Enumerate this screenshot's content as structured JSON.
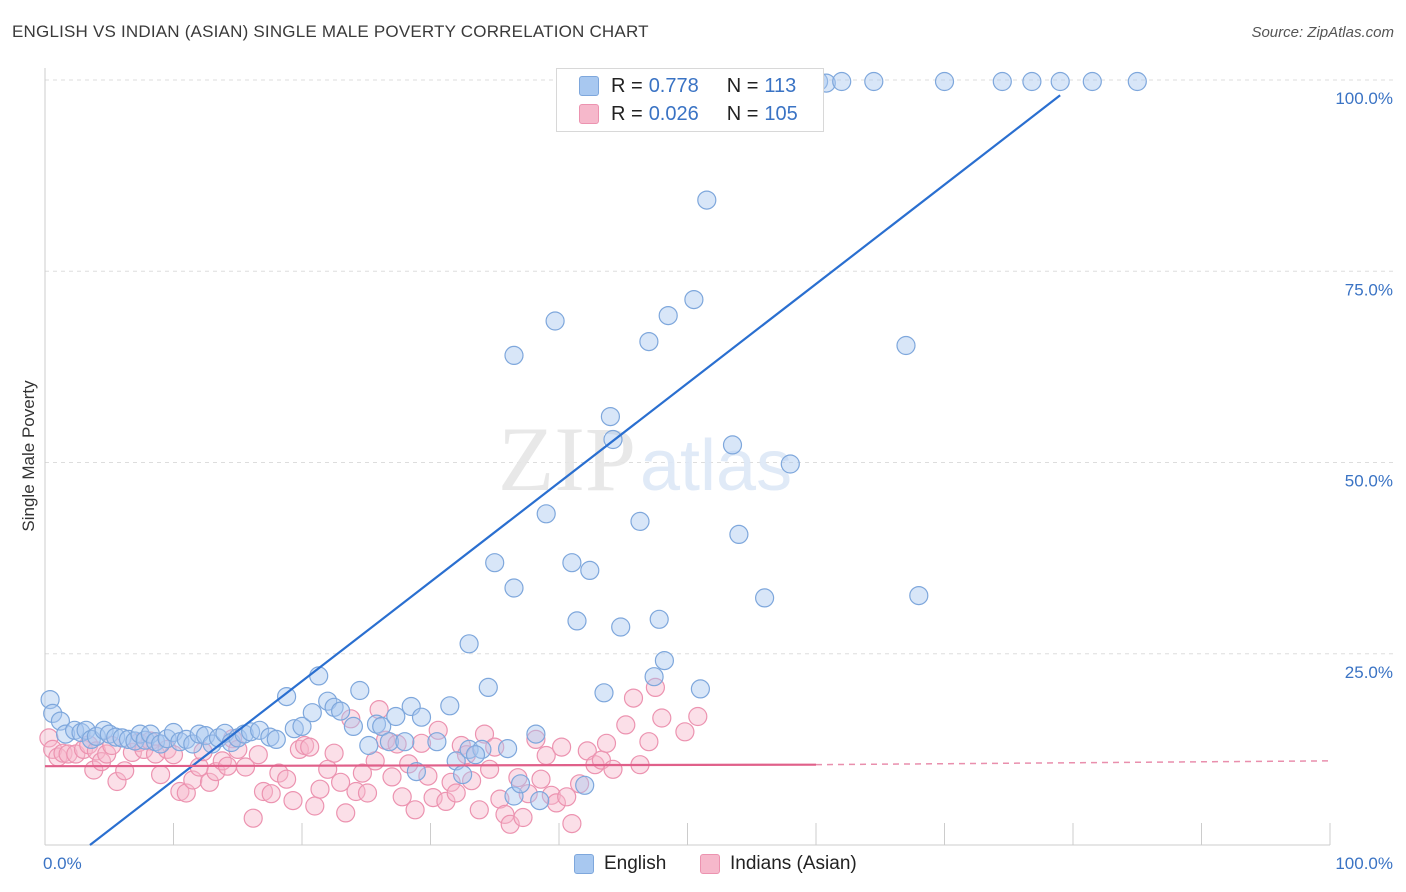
{
  "header": {
    "title": "ENGLISH VS INDIAN (ASIAN) SINGLE MALE POVERTY CORRELATION CHART",
    "source": "Source: ZipAtlas.com"
  },
  "watermark": {
    "zip": "ZIP",
    "atlas": "atlas"
  },
  "legend": {
    "r_label": "R =",
    "n_label": "N =",
    "series": [
      {
        "name": "English",
        "r": "0.778",
        "n": "113"
      },
      {
        "name": "Indians (Asian)",
        "r": "0.026",
        "n": "105"
      }
    ]
  },
  "colors": {
    "english_fill": "#a8c8f0",
    "english_stroke": "#7ea7dc",
    "english_line": "#2a6fd0",
    "indian_fill": "#f6b8cb",
    "indian_stroke": "#ec93b0",
    "indian_line": "#e0608a",
    "tick_text": "#3a73c4",
    "grid": "#dddddd"
  },
  "chart_data": {
    "type": "scatter",
    "title": "ENGLISH VS INDIAN (ASIAN) SINGLE MALE POVERTY CORRELATION CHART",
    "xlabel": "",
    "ylabel": "Single Male Poverty",
    "xlim": [
      0,
      100
    ],
    "ylim": [
      0,
      100
    ],
    "x_tick_labels": [
      "0.0%",
      "100.0%"
    ],
    "y_tick_labels": [
      {
        "value": 25,
        "label": "25.0%"
      },
      {
        "value": 50,
        "label": "50.0%"
      },
      {
        "value": 75,
        "label": "75.0%"
      },
      {
        "value": 100,
        "label": "100.0%"
      }
    ],
    "grid": true,
    "legend_position": "top-center",
    "series": [
      {
        "name": "English",
        "r": 0.778,
        "n": 113,
        "trend": {
          "x": [
            3.5,
            79
          ],
          "y": [
            0,
            98
          ]
        },
        "points": [
          [
            0.4,
            19
          ],
          [
            0.6,
            17.2
          ],
          [
            1.2,
            16.2
          ],
          [
            1.6,
            14.5
          ],
          [
            2.3,
            15
          ],
          [
            2.8,
            14.7
          ],
          [
            3.2,
            15
          ],
          [
            3.6,
            13.8
          ],
          [
            4.0,
            14.2
          ],
          [
            4.6,
            15
          ],
          [
            5.0,
            14.5
          ],
          [
            5.5,
            14.1
          ],
          [
            6.0,
            14
          ],
          [
            6.5,
            13.8
          ],
          [
            7.0,
            13.6
          ],
          [
            7.4,
            14.5
          ],
          [
            7.8,
            13.7
          ],
          [
            8.2,
            14.5
          ],
          [
            8.6,
            13.5
          ],
          [
            9.0,
            13.2
          ],
          [
            9.5,
            13.9
          ],
          [
            10.0,
            14.7
          ],
          [
            10.5,
            13.5
          ],
          [
            11.0,
            13.8
          ],
          [
            11.5,
            13.2
          ],
          [
            12.0,
            14.5
          ],
          [
            12.5,
            14.3
          ],
          [
            13.0,
            13.2
          ],
          [
            13.5,
            14
          ],
          [
            14.0,
            14.6
          ],
          [
            14.5,
            13.4
          ],
          [
            15.0,
            14
          ],
          [
            15.5,
            14.5
          ],
          [
            16.0,
            14.8
          ],
          [
            16.7,
            15
          ],
          [
            17.5,
            14.1
          ],
          [
            18.0,
            13.8
          ],
          [
            18.8,
            19.4
          ],
          [
            19.4,
            15.2
          ],
          [
            20.0,
            15.5
          ],
          [
            20.8,
            17.3
          ],
          [
            21.3,
            22.1
          ],
          [
            22.0,
            18.8
          ],
          [
            22.5,
            18
          ],
          [
            23.0,
            17.5
          ],
          [
            24.0,
            15.5
          ],
          [
            24.5,
            20.2
          ],
          [
            25.2,
            13
          ],
          [
            25.8,
            15.8
          ],
          [
            26.2,
            15.5
          ],
          [
            26.8,
            13.5
          ],
          [
            27.3,
            16.8
          ],
          [
            28.0,
            13.5
          ],
          [
            28.5,
            18.1
          ],
          [
            28.9,
            9.6
          ],
          [
            29.3,
            16.7
          ],
          [
            30.5,
            13.5
          ],
          [
            31.5,
            18.2
          ],
          [
            32.0,
            11
          ],
          [
            32.5,
            9.2
          ],
          [
            33.0,
            12.5
          ],
          [
            34.0,
            12.5
          ],
          [
            33.5,
            11.8
          ],
          [
            33.0,
            26.3
          ],
          [
            34.5,
            20.6
          ],
          [
            35.0,
            36.9
          ],
          [
            36.5,
            33.6
          ],
          [
            36.5,
            6.4
          ],
          [
            37.0,
            8
          ],
          [
            38.2,
            14.5
          ],
          [
            36.0,
            12.6
          ],
          [
            36.5,
            64
          ],
          [
            38.5,
            5.8
          ],
          [
            39.0,
            43.3
          ],
          [
            39.7,
            68.5
          ],
          [
            41.0,
            36.9
          ],
          [
            41.4,
            29.3
          ],
          [
            42.0,
            7.8
          ],
          [
            42.4,
            35.9
          ],
          [
            43.5,
            19.9
          ],
          [
            44.0,
            56
          ],
          [
            44.2,
            53
          ],
          [
            44.8,
            28.5
          ],
          [
            46.3,
            42.3
          ],
          [
            47.0,
            65.8
          ],
          [
            47.4,
            22
          ],
          [
            47.8,
            29.5
          ],
          [
            48.2,
            24.1
          ],
          [
            48.5,
            69.2
          ],
          [
            50.5,
            71.3
          ],
          [
            51.0,
            20.4
          ],
          [
            51.5,
            84.3
          ],
          [
            52.0,
            99.2
          ],
          [
            53.5,
            52.3
          ],
          [
            54.0,
            40.6
          ],
          [
            56.0,
            32.3
          ],
          [
            58.0,
            49.8
          ],
          [
            60.2,
            99.8
          ],
          [
            60.8,
            99.6
          ],
          [
            62.0,
            99.8
          ],
          [
            64.5,
            99.8
          ],
          [
            67.0,
            65.3
          ],
          [
            68.0,
            32.6
          ],
          [
            70.0,
            99.8
          ],
          [
            74.5,
            99.8
          ],
          [
            76.8,
            99.8
          ],
          [
            79.0,
            99.8
          ],
          [
            81.5,
            99.8
          ],
          [
            85.0,
            99.8
          ],
          [
            48.0,
            99.9
          ],
          [
            48.5,
            99.8
          ],
          [
            50.8,
            99.9
          ],
          [
            47.8,
            99.6
          ]
        ]
      },
      {
        "name": "Indians (Asian)",
        "r": 0.026,
        "n": 105,
        "trend": {
          "x": [
            0,
            60
          ],
          "y": [
            10.3,
            10.5
          ]
        },
        "trend_dashed": {
          "x": [
            60,
            100
          ],
          "y": [
            10.5,
            11
          ]
        },
        "points": [
          [
            0.3,
            14
          ],
          [
            0.6,
            12.5
          ],
          [
            1.0,
            11.5
          ],
          [
            1.4,
            12
          ],
          [
            1.8,
            11.9
          ],
          [
            2.4,
            11.9
          ],
          [
            3.0,
            12.5
          ],
          [
            3.4,
            13.1
          ],
          [
            3.8,
            9.8
          ],
          [
            4.0,
            12.3
          ],
          [
            4.4,
            10.9
          ],
          [
            4.8,
            11.9
          ],
          [
            5.2,
            13
          ],
          [
            5.6,
            8.3
          ],
          [
            6.2,
            9.7
          ],
          [
            6.8,
            12.1
          ],
          [
            7.3,
            13.4
          ],
          [
            7.7,
            12.5
          ],
          [
            8.2,
            13.6
          ],
          [
            8.6,
            11.9
          ],
          [
            9.0,
            9.2
          ],
          [
            9.5,
            12.5
          ],
          [
            10.0,
            11.8
          ],
          [
            10.5,
            7
          ],
          [
            11.0,
            6.8
          ],
          [
            11.5,
            8.5
          ],
          [
            12.0,
            10.2
          ],
          [
            12.3,
            12.2
          ],
          [
            12.8,
            8.2
          ],
          [
            13.3,
            9.6
          ],
          [
            13.8,
            11
          ],
          [
            14.2,
            10.3
          ],
          [
            14.6,
            13.9
          ],
          [
            15.0,
            12.5
          ],
          [
            15.6,
            10.2
          ],
          [
            16.2,
            3.5
          ],
          [
            16.6,
            11.8
          ],
          [
            17.0,
            7
          ],
          [
            17.6,
            6.7
          ],
          [
            18.2,
            9.4
          ],
          [
            18.8,
            8.6
          ],
          [
            19.3,
            5.8
          ],
          [
            19.8,
            12.5
          ],
          [
            20.2,
            13
          ],
          [
            20.6,
            12.8
          ],
          [
            21.0,
            5.1
          ],
          [
            21.4,
            7.3
          ],
          [
            22.0,
            9.9
          ],
          [
            22.5,
            12
          ],
          [
            23.0,
            8.2
          ],
          [
            23.4,
            4.2
          ],
          [
            23.8,
            16.5
          ],
          [
            24.2,
            7
          ],
          [
            24.7,
            9.4
          ],
          [
            25.1,
            6.8
          ],
          [
            25.7,
            11
          ],
          [
            26.0,
            17.7
          ],
          [
            26.5,
            13.7
          ],
          [
            27.0,
            8.9
          ],
          [
            27.4,
            13.2
          ],
          [
            27.8,
            6.3
          ],
          [
            28.3,
            10.6
          ],
          [
            28.8,
            4.6
          ],
          [
            29.3,
            13.3
          ],
          [
            29.8,
            9
          ],
          [
            30.2,
            6.2
          ],
          [
            30.6,
            15
          ],
          [
            31.2,
            5.7
          ],
          [
            31.6,
            8.2
          ],
          [
            32.0,
            6.8
          ],
          [
            32.4,
            13
          ],
          [
            32.8,
            11.8
          ],
          [
            33.2,
            8.4
          ],
          [
            33.8,
            4.6
          ],
          [
            34.2,
            14.5
          ],
          [
            34.6,
            9.9
          ],
          [
            35.0,
            12.8
          ],
          [
            35.4,
            6
          ],
          [
            35.8,
            4
          ],
          [
            36.2,
            2.7
          ],
          [
            36.8,
            8.8
          ],
          [
            37.2,
            3.6
          ],
          [
            37.6,
            6.7
          ],
          [
            38.2,
            13.8
          ],
          [
            38.6,
            8.6
          ],
          [
            39.0,
            11.7
          ],
          [
            39.4,
            6.5
          ],
          [
            39.8,
            5.5
          ],
          [
            40.2,
            12.8
          ],
          [
            40.6,
            6.3
          ],
          [
            41.0,
            2.8
          ],
          [
            41.6,
            8
          ],
          [
            42.2,
            12.3
          ],
          [
            42.8,
            10.5
          ],
          [
            43.3,
            11.1
          ],
          [
            43.7,
            13.3
          ],
          [
            44.2,
            9.9
          ],
          [
            45.2,
            15.7
          ],
          [
            45.8,
            19.2
          ],
          [
            46.3,
            10.5
          ],
          [
            47.0,
            13.5
          ],
          [
            47.5,
            20.6
          ],
          [
            48.0,
            16.6
          ],
          [
            49.8,
            14.8
          ],
          [
            50.8,
            16.8
          ]
        ]
      }
    ]
  }
}
